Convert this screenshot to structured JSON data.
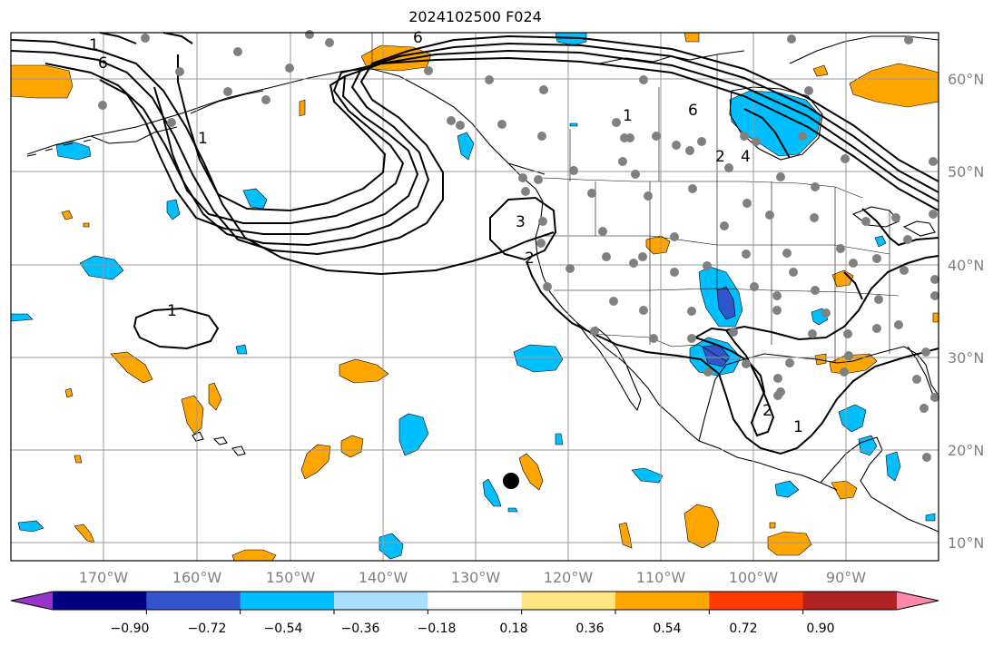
{
  "title": "2024102500 F024",
  "lon_ticks": [
    "170°W",
    "160°W",
    "150°W",
    "140°W",
    "130°W",
    "120°W",
    "110°W",
    "100°W",
    "90°W"
  ],
  "lat_ticks": [
    "60°N",
    "50°N",
    "40°N",
    "30°N",
    "20°N",
    "10°N"
  ],
  "contour_labels": [
    "6",
    "1",
    "6",
    "2",
    "4",
    "3",
    "2",
    "1",
    "2",
    "1",
    "6",
    "1",
    "1"
  ],
  "colorbar": {
    "ticks": [
      "−0.90",
      "−0.72",
      "−0.54",
      "−0.36",
      "−0.18",
      "0.18",
      "0.36",
      "0.54",
      "0.72",
      "0.90"
    ],
    "colors": [
      "#9933cc",
      "#000080",
      "#3355cc",
      "#00bfff",
      "#aadfff",
      "#ffffff",
      "#ffe680",
      "#ffa500",
      "#ff3a00",
      "#b22222",
      "#ff88aa"
    ]
  },
  "colors": {
    "positive": "#ffa500",
    "negative": "#00bfff",
    "strong_negative": "#3355cc",
    "station": "#808080",
    "grid": "#999999"
  }
}
